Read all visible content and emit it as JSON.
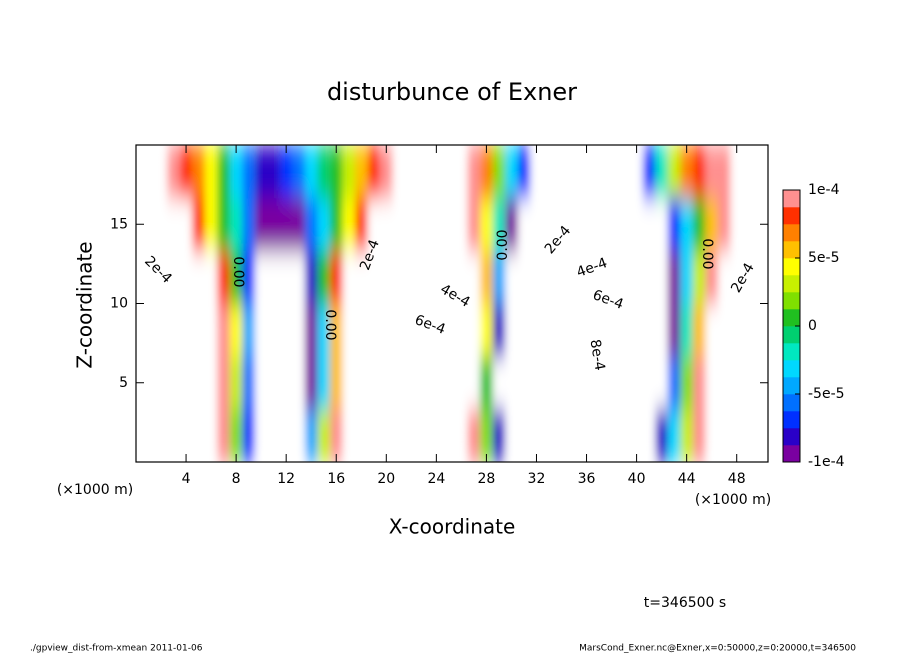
{
  "chart_data": {
    "type": "contour",
    "title": "disturbunce of Exner",
    "x_label": "X-coordinate",
    "y_label": "Z-coordinate",
    "x_unit": "(×1000 m)",
    "y_unit": "(×1000 m)",
    "time_label": "t=346500 s",
    "footer_left": "./gpview_dist-from-xmean  2011-01-06",
    "footer_right": "MarsCond_Exner.nc@Exner,x=0:50000,z=0:20000,t=346500",
    "xlim": [
      0,
      50.5
    ],
    "ylim": [
      0,
      20
    ],
    "xticks": [
      4,
      8,
      12,
      16,
      20,
      24,
      28,
      32,
      36,
      40,
      44,
      48
    ],
    "yticks": [
      5,
      10,
      15
    ],
    "x": [
      0,
      1,
      2,
      3,
      4,
      5,
      6,
      7,
      8,
      9,
      10,
      11,
      12,
      13,
      14,
      15,
      16,
      17,
      18,
      19,
      20,
      21,
      22,
      23,
      24,
      25,
      26,
      27,
      28,
      29,
      30,
      31,
      32,
      33,
      34,
      35,
      36,
      37,
      38,
      39,
      40,
      41,
      42,
      43,
      44,
      45,
      46,
      47,
      48,
      49,
      50
    ],
    "y": [
      1.67,
      5,
      8.33,
      11.67,
      15,
      18.33
    ],
    "values": [
      [
        0.00012,
        0.00013,
        0.00013,
        0.00013,
        0.00013,
        0.00012,
        0.00012,
        0.0001,
        2e-05,
        -7e-05,
        -0.00012,
        -0.00014,
        -0.00014,
        -0.00011,
        -4e-05,
        3e-05,
        9e-05,
        0.00016,
        0.00024,
        0.0003,
        0.00032,
        0.00032,
        0.00032,
        0.0003,
        0.00028,
        0.00024,
        0.00018,
        0.0001,
        2e-05,
        -8e-05,
        -0.00018,
        -0.00026,
        -0.00032,
        -0.00036,
        -0.00038,
        -0.00038,
        -0.00038,
        -0.00036,
        -0.00032,
        -0.00026,
        -0.00019,
        -0.00013,
        -8e-05,
        -3e-05,
        3e-05,
        9e-05,
        0.00012,
        0.00013,
        0.00013,
        0.00013,
        0.00012
      ],
      [
        0.00013,
        0.00014,
        0.00015,
        0.00015,
        0.00014,
        0.00013,
        0.00012,
        0.0001,
        3e-05,
        -6e-05,
        -0.00013,
        -0.00016,
        -0.00016,
        -0.00014,
        -9e-05,
        -3e-05,
        5e-05,
        0.00018,
        0.00032,
        0.0004,
        0.00044,
        0.00046,
        0.00046,
        0.00044,
        0.0004,
        0.00034,
        0.00024,
        0.00012,
        0,
        -0.00012,
        -0.00024,
        -0.00036,
        -0.00046,
        -0.00054,
        -0.0006,
        -0.00064,
        -0.00064,
        -0.00062,
        -0.00056,
        -0.00046,
        -0.00034,
        -0.00022,
        -0.00014,
        -6e-05,
        2e-05,
        9e-05,
        0.00013,
        0.00015,
        0.00016,
        0.00016,
        0.00015
      ],
      [
        0.00015,
        0.00016,
        0.00018,
        0.00018,
        0.00016,
        0.00015,
        0.00013,
        0.0001,
        4e-05,
        -5e-05,
        -0.00012,
        -0.00015,
        -0.00016,
        -0.00014,
        -0.0001,
        -3e-05,
        6e-05,
        0.00016,
        0.00028,
        0.0004,
        0.0005,
        0.00058,
        0.00062,
        0.0006,
        0.00054,
        0.00044,
        0.00032,
        0.00018,
        4e-05,
        -8e-05,
        -0.0002,
        -0.00032,
        -0.00044,
        -0.00056,
        -0.00066,
        -0.00076,
        -0.00082,
        -0.00082,
        -0.00076,
        -0.00064,
        -0.00048,
        -0.00032,
        -0.0002,
        -0.0001,
        -2e-05,
        6e-05,
        0.00012,
        0.00016,
        0.00018,
        0.0002,
        0.0002
      ],
      [
        0.00018,
        0.0002,
        0.0002,
        0.00018,
        0.00016,
        0.00014,
        0.00012,
        8e-05,
        0,
        -7e-05,
        -0.00013,
        -0.00016,
        -0.00016,
        -0.00013,
        -8e-05,
        0,
        8e-05,
        0.00015,
        0.00022,
        0.0003,
        0.00035,
        0.00038,
        0.00042,
        0.00044,
        0.0004,
        0.00034,
        0.00026,
        0.00016,
        6e-05,
        -4e-05,
        -0.00014,
        -0.00022,
        -0.0003,
        -0.00036,
        -0.00042,
        -0.0005,
        -0.00054,
        -0.00054,
        -0.0005,
        -0.00042,
        -0.00032,
        -0.00022,
        -0.00015,
        -9e-05,
        -3e-05,
        3e-05,
        9e-05,
        0.00014,
        0.00018,
        0.0002,
        0.0002
      ],
      [
        0.00013,
        0.00016,
        0.00018,
        0.00016,
        0.00011,
        8e-05,
        4e-05,
        1e-05,
        -2e-05,
        -6e-05,
        -9e-05,
        -0.0001,
        -0.0001,
        -9e-05,
        -6e-05,
        -3e-05,
        0,
        4e-05,
        8e-05,
        0.00012,
        0.0002,
        0.00026,
        0.0003,
        0.0003,
        0.00026,
        0.0002,
        0.00014,
        0.0001,
        4e-05,
        -2e-05,
        -9e-05,
        -0.00013,
        -0.00018,
        -0.00024,
        -0.00028,
        -0.0003,
        -0.0003,
        -0.00028,
        -0.00024,
        -0.0002,
        -0.00016,
        -0.00013,
        -0.00011,
        -7e-05,
        -3e-05,
        1e-05,
        6e-05,
        9.5e-05,
        0.00013,
        0.00018,
        0.0002
      ],
      [
        0.00015,
        0.00015,
        0.00013,
        9.5e-05,
        8.5e-05,
        7e-05,
        4e-05,
        1e-05,
        -3e-05,
        -6e-05,
        -8e-05,
        -8.5e-05,
        -7e-05,
        -5.5e-05,
        -3e-05,
        -1e-05,
        1e-05,
        3.5e-05,
        6e-05,
        8.5e-05,
        0.0001,
        0.00013,
        0.00016,
        0.00016,
        0.00016,
        0.00016,
        0.00013,
        0.0001,
        7e-05,
        2e-05,
        -3e-05,
        -7e-05,
        -0.00012,
        -0.00015,
        -0.00015,
        -0.00015,
        -0.00015,
        -0.00015,
        -0.00015,
        -0.00015,
        -0.00012,
        -7e-05,
        -2e-05,
        3e-05,
        7e-05,
        8.5e-05,
        9e-05,
        0.0001,
        0.00012,
        0.00013,
        0.00013
      ]
    ],
    "levels": [
      -0.0001,
      -8.75e-05,
      -7.5e-05,
      -6.25e-05,
      -5e-05,
      -3.75e-05,
      -2.5e-05,
      -1.25e-05,
      0,
      1.25e-05,
      2.5e-05,
      3.75e-05,
      5e-05,
      6.25e-05,
      7.5e-05,
      8.75e-05,
      0.0001
    ],
    "colors": [
      "#7a00a0",
      "#2a00c8",
      "#0030ff",
      "#0070ff",
      "#00a8ff",
      "#00d8ff",
      "#00e8c0",
      "#00d070",
      "#20c020",
      "#80e000",
      "#c8f000",
      "#ffff00",
      "#ffc000",
      "#ff8000",
      "#ff3000",
      "#ff9090"
    ],
    "colorbar_ticks": [
      {
        "value": 0.0001,
        "label": "1e-4"
      },
      {
        "value": 5e-05,
        "label": "5e-5"
      },
      0,
      {
        "value": -5e-05,
        "label": "-5e-5"
      },
      {
        "value": -0.0001,
        "label": "-1e-4"
      }
    ],
    "contour_labels": [
      "2e-4",
      "0.00",
      "0.00",
      "2e-4",
      "4e-4",
      "6e-4",
      "0.00",
      "2e-4",
      "4e-4",
      "6e-4",
      "8e-4",
      "0.00",
      "2e-4"
    ]
  }
}
